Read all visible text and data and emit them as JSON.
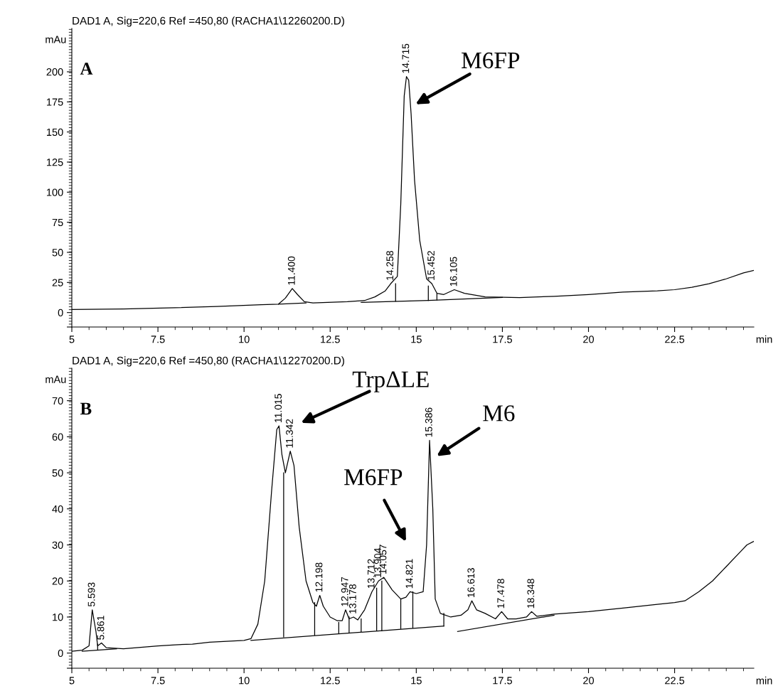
{
  "chart_data": [
    {
      "type": "line",
      "title": "DAD1 A, Sig=220,6 Ref =450,80 (RACHA1\\12260200.D)",
      "ylabel": "mAu",
      "xlabel": "min",
      "xlim": [
        5,
        24.8
      ],
      "xticks": [
        5,
        7.5,
        10,
        12.5,
        15,
        17.5,
        20,
        22.5
      ],
      "ylim": [
        -12,
        236
      ],
      "yticks": [
        {
          "value": -12,
          "label": null
        },
        0,
        25,
        50,
        75,
        100,
        125,
        150,
        175,
        200
      ],
      "annotations": [
        "A",
        "M6FP",
        {
          "text": "11.400",
          "x": 11.4,
          "y": 20
        },
        {
          "text": "14.258",
          "x": 14.258,
          "y": 24
        },
        {
          "text": "14.715",
          "x": 14.715,
          "y": 196
        },
        {
          "text": "15.452",
          "x": 15.452,
          "y": 24
        },
        {
          "text": "16.105",
          "x": 16.105,
          "y": 19
        }
      ],
      "series": [
        {
          "color": "#000000",
          "x": [
            5,
            6.5,
            8,
            9.2,
            10.5,
            11.0,
            11.2,
            11.4,
            11.55,
            11.75,
            12,
            13,
            13.5,
            13.8,
            14.1,
            14.258,
            14.45,
            14.55,
            14.65,
            14.715,
            14.78,
            14.85,
            14.95,
            15.1,
            15.3,
            15.452,
            15.6,
            15.8,
            16.105,
            16.4,
            17,
            18,
            19,
            20,
            21,
            22,
            22.5,
            23,
            23.5,
            24,
            24.5,
            24.8
          ],
          "values": [
            2.5,
            3,
            4,
            5,
            6.5,
            7,
            12,
            20,
            15,
            9,
            8,
            9,
            10,
            13,
            18,
            24,
            30,
            90,
            180,
            196,
            193,
            165,
            110,
            60,
            28,
            24,
            16,
            15,
            19,
            16,
            13,
            12.5,
            13.5,
            15,
            17,
            18,
            19,
            21,
            24,
            28,
            33,
            35
          ]
        },
        {
          "color": "#000000",
          "x": [
            11.0,
            11.8
          ],
          "values": [
            7,
            8
          ]
        },
        {
          "color": "#000000",
          "x": [
            13.4,
            15.35,
            17.5
          ],
          "values": [
            8.5,
            10,
            12.5
          ]
        },
        {
          "color": "#000000",
          "x": [
            14.4,
            14.4
          ],
          "values": [
            9.5,
            24
          ]
        },
        {
          "color": "#000000",
          "x": [
            15.35,
            15.35
          ],
          "values": [
            10,
            22
          ]
        },
        {
          "color": "#000000",
          "x": [
            15.6,
            15.6
          ],
          "values": [
            10.5,
            16
          ]
        }
      ]
    },
    {
      "type": "line",
      "title": "DAD1 A, Sig=220,6 Ref =450,80 (RACHA1\\12270200.D)",
      "ylabel": "mAu",
      "xlabel": "min",
      "xlim": [
        5,
        24.8
      ],
      "xticks": [
        5,
        7.5,
        10,
        12.5,
        15,
        17.5,
        20,
        22.5
      ],
      "ylim": [
        -4.2,
        79
      ],
      "yticks": [
        {
          "value": -4.2,
          "label": null
        },
        0,
        10,
        20,
        30,
        40,
        50,
        60,
        70
      ],
      "annotations": [
        "B",
        "TrpΔLE",
        "M6",
        "M6FP",
        {
          "text": "5.593",
          "x": 5.593,
          "y": 12
        },
        {
          "text": "5.861",
          "x": 5.861,
          "y": 2.8
        },
        {
          "text": "11.015",
          "x": 11.015,
          "y": 63
        },
        {
          "text": "11.342",
          "x": 11.342,
          "y": 56
        },
        {
          "text": "12.198",
          "x": 12.198,
          "y": 16
        },
        {
          "text": "12.947",
          "x": 12.947,
          "y": 12
        },
        {
          "text": "13.178",
          "x": 13.178,
          "y": 10
        },
        {
          "text": "13.712",
          "x": 13.712,
          "y": 17
        },
        {
          "text": "13.904",
          "x": 13.904,
          "y": 20
        },
        {
          "text": "14.057",
          "x": 14.057,
          "y": 21
        },
        {
          "text": "14.821",
          "x": 14.821,
          "y": 17
        },
        {
          "text": "15.386",
          "x": 15.386,
          "y": 59
        },
        {
          "text": "16.613",
          "x": 16.613,
          "y": 14.5
        },
        {
          "text": "17.478",
          "x": 17.478,
          "y": 11.5
        },
        {
          "text": "18.348",
          "x": 18.348,
          "y": 11.5
        }
      ],
      "series": [
        {
          "color": "#000000",
          "x": [
            5,
            5.3,
            5.5,
            5.593,
            5.7,
            5.75,
            5.861,
            6.0,
            6.5,
            7.5,
            8.0,
            8.5,
            9,
            10,
            10.2,
            10.4,
            10.6,
            10.8,
            10.95,
            11.015,
            11.1,
            11.2,
            11.342,
            11.45,
            11.6,
            11.8,
            12.0,
            12.1,
            12.198,
            12.3,
            12.5,
            12.7,
            12.85,
            12.947,
            13.05,
            13.178,
            13.3,
            13.5,
            13.712,
            13.904,
            14.057,
            14.3,
            14.55,
            14.7,
            14.821,
            15.0,
            15.2,
            15.3,
            15.386,
            15.48,
            15.55,
            15.7,
            16.0,
            16.3,
            16.5,
            16.613,
            16.75,
            17.0,
            17.3,
            17.478,
            17.65,
            17.9,
            18.2,
            18.348,
            18.5,
            19,
            20,
            21,
            22,
            22.5,
            22.8,
            23.2,
            23.6,
            24,
            24.4,
            24.6,
            24.8
          ],
          "values": [
            0.5,
            0.8,
            2,
            12,
            6,
            2,
            2.8,
            1.5,
            1.2,
            2,
            2.3,
            2.5,
            3,
            3.5,
            4,
            8,
            20,
            45,
            62,
            63,
            55,
            50,
            56,
            52,
            35,
            20,
            14,
            13,
            16,
            13,
            10,
            9,
            9,
            12,
            9.5,
            10,
            9.2,
            12,
            17,
            20,
            21,
            17.5,
            15,
            15.5,
            17,
            16.5,
            17,
            30,
            59,
            40,
            15,
            11,
            10,
            10.5,
            12,
            14.5,
            12,
            11,
            9.5,
            11.5,
            9.5,
            9.5,
            10,
            11.5,
            10.2,
            10.8,
            11.5,
            12.5,
            13.5,
            14,
            14.5,
            17,
            20,
            24,
            28,
            30,
            31
          ]
        },
        {
          "color": "#000000",
          "x": [
            5.3,
            6.3
          ],
          "values": [
            0.5,
            1.2
          ]
        },
        {
          "color": "#000000",
          "x": [
            10.2,
            15.8
          ],
          "values": [
            3.5,
            7.5
          ]
        },
        {
          "color": "#000000",
          "x": [
            16.2,
            19
          ],
          "values": [
            6,
            10.5
          ]
        },
        {
          "color": "#000000",
          "x": [
            5.75,
            5.75
          ],
          "values": [
            1,
            2.5
          ]
        },
        {
          "color": "#000000",
          "x": [
            11.15,
            11.15
          ],
          "values": [
            4.5,
            50
          ]
        },
        {
          "color": "#000000",
          "x": [
            12.05,
            12.05
          ],
          "values": [
            5,
            14
          ]
        },
        {
          "color": "#000000",
          "x": [
            12.75,
            12.75
          ],
          "values": [
            5.5,
            8.5
          ]
        },
        {
          "color": "#000000",
          "x": [
            13.05,
            13.05
          ],
          "values": [
            5.8,
            10
          ]
        },
        {
          "color": "#000000",
          "x": [
            13.4,
            13.4
          ],
          "values": [
            6,
            9.5
          ]
        },
        {
          "color": "#000000",
          "x": [
            13.85,
            13.85
          ],
          "values": [
            6.2,
            18
          ]
        },
        {
          "color": "#000000",
          "x": [
            14.0,
            14.0
          ],
          "values": [
            6.2,
            20
          ]
        },
        {
          "color": "#000000",
          "x": [
            14.55,
            14.55
          ],
          "values": [
            6.8,
            15
          ]
        },
        {
          "color": "#000000",
          "x": [
            14.9,
            14.9
          ],
          "values": [
            7,
            17
          ]
        },
        {
          "color": "#000000",
          "x": [
            15.8,
            15.8
          ],
          "values": [
            7.5,
            11
          ]
        }
      ]
    }
  ]
}
